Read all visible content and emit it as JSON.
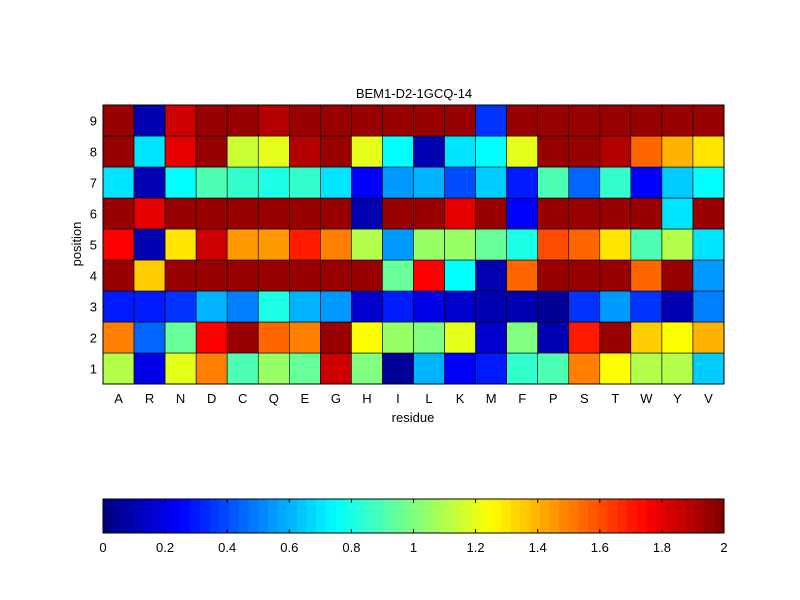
{
  "chart_data": {
    "type": "heatmap",
    "title": "BEM1-D2-1GCQ-14",
    "xlabel": "residue",
    "ylabel": "position",
    "x_categories": [
      "A",
      "R",
      "N",
      "D",
      "C",
      "Q",
      "E",
      "G",
      "H",
      "I",
      "L",
      "K",
      "M",
      "F",
      "P",
      "S",
      "T",
      "W",
      "Y",
      "V"
    ],
    "y_categories": [
      "1",
      "2",
      "3",
      "4",
      "5",
      "6",
      "7",
      "8",
      "9"
    ],
    "values": [
      [
        1.1,
        0.2,
        1.2,
        1.5,
        0.9,
        1.05,
        0.95,
        1.85,
        1.0,
        0.05,
        0.6,
        0.25,
        0.3,
        0.85,
        0.9,
        1.5,
        1.25,
        1.1,
        1.1,
        0.65
      ],
      [
        1.5,
        0.45,
        0.95,
        1.75,
        1.95,
        1.55,
        1.5,
        1.95,
        1.25,
        1.05,
        1.0,
        1.2,
        0.15,
        1.0,
        0.1,
        1.7,
        1.95,
        1.35,
        1.25,
        1.4
      ],
      [
        0.3,
        0.3,
        0.35,
        0.6,
        0.5,
        0.8,
        0.6,
        0.55,
        0.15,
        0.3,
        0.2,
        0.15,
        0.1,
        0.1,
        0.05,
        0.35,
        0.55,
        0.35,
        0.1,
        0.5
      ],
      [
        1.95,
        1.35,
        1.95,
        1.95,
        1.95,
        1.95,
        1.95,
        1.95,
        1.95,
        0.95,
        1.75,
        0.75,
        0.1,
        1.55,
        1.95,
        1.95,
        1.95,
        1.55,
        1.95,
        0.55
      ],
      [
        1.75,
        0.1,
        1.3,
        1.85,
        1.45,
        1.45,
        1.7,
        1.5,
        1.1,
        0.55,
        1.05,
        1.05,
        0.95,
        0.8,
        1.6,
        1.55,
        1.3,
        0.9,
        1.1,
        0.7
      ],
      [
        1.95,
        1.8,
        1.95,
        1.95,
        1.95,
        1.95,
        1.95,
        1.95,
        0.1,
        1.95,
        1.95,
        1.8,
        1.95,
        0.25,
        1.95,
        1.95,
        1.95,
        1.95,
        0.7,
        1.95
      ],
      [
        0.7,
        0.1,
        0.75,
        0.9,
        0.85,
        0.8,
        0.85,
        0.7,
        0.25,
        0.55,
        0.6,
        0.4,
        0.65,
        0.3,
        0.9,
        0.45,
        0.85,
        0.25,
        0.65,
        0.75
      ],
      [
        1.95,
        0.7,
        1.8,
        1.95,
        1.15,
        1.2,
        1.9,
        1.95,
        1.2,
        0.75,
        0.1,
        0.7,
        0.75,
        1.2,
        1.95,
        1.95,
        1.9,
        1.55,
        1.4,
        1.3
      ],
      [
        1.95,
        0.1,
        1.85,
        1.95,
        1.95,
        1.9,
        1.95,
        1.95,
        1.95,
        1.95,
        1.95,
        1.95,
        0.35,
        1.95,
        1.95,
        1.95,
        1.95,
        1.95,
        1.95,
        1.95
      ]
    ],
    "colorbar": {
      "colormap": "jet",
      "range": [
        0,
        2
      ],
      "tick_values": [
        0,
        0.2,
        0.4,
        0.6,
        0.8,
        1,
        1.2,
        1.4,
        1.6,
        1.8,
        2
      ],
      "tick_labels": [
        "0",
        "0.2",
        "0.4",
        "0.6",
        "0.8",
        "1",
        "1.2",
        "1.4",
        "1.6",
        "1.8",
        "2"
      ],
      "orientation": "horizontal",
      "placement": "bottom"
    },
    "grid": false
  }
}
